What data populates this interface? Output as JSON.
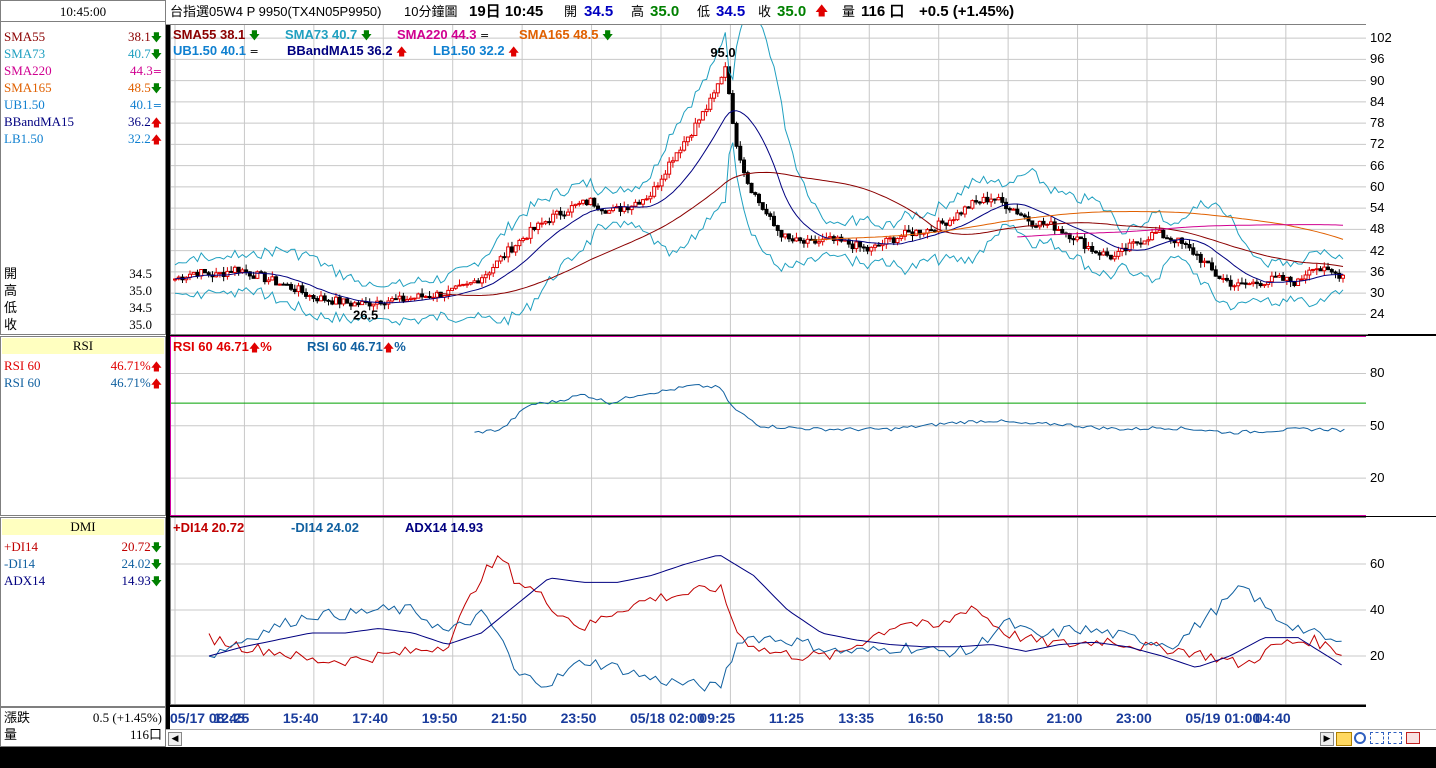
{
  "time": "10:45:00",
  "indicator_list": [
    {
      "name": "SMA55",
      "value": "38.1",
      "dir": "down",
      "color": "#8b0000"
    },
    {
      "name": "SMA73",
      "value": "40.7",
      "dir": "down",
      "color": "#20a0c0"
    },
    {
      "name": "SMA220",
      "value": "44.3",
      "dir": "eq",
      "color": "#d00090"
    },
    {
      "name": "SMA165",
      "value": "48.5",
      "dir": "down",
      "color": "#e06000"
    },
    {
      "name": "UB1.50",
      "value": "40.1",
      "dir": "eq",
      "color": "#1080d0"
    },
    {
      "name": "BBandMA15",
      "value": "36.2",
      "dir": "up",
      "color": "#000080"
    },
    {
      "name": "LB1.50",
      "value": "32.2",
      "dir": "up",
      "color": "#1080d0"
    }
  ],
  "ohlc": [
    {
      "label": "開",
      "value": "34.5"
    },
    {
      "label": "高",
      "value": "35.0"
    },
    {
      "label": "低",
      "value": "34.5"
    },
    {
      "label": "收",
      "value": "35.0"
    }
  ],
  "rsi_panel": {
    "header": "RSI",
    "items": [
      {
        "name": "RSI 60",
        "value": "46.71%",
        "color": "#e00000"
      },
      {
        "name": "RSI 60",
        "value": "46.71%",
        "color": "#1060a0"
      }
    ]
  },
  "dmi_panel": {
    "header": "DMI",
    "items": [
      {
        "name": "+DI14",
        "value": "20.72",
        "dir": "down",
        "color": "#c00000"
      },
      {
        "name": "-DI14",
        "value": "24.02",
        "dir": "down",
        "color": "#1060a0"
      },
      {
        "name": "ADX14",
        "value": "14.93",
        "dir": "down",
        "color": "#000080"
      }
    ]
  },
  "change_label": "漲跌",
  "change_value": "0.5 (+1.45%)",
  "volume_label": "量",
  "volume_value": "116口",
  "topbar": {
    "symbol": "台指選05W4 P 9950(TX4N05P9950)",
    "interval": "10分鐘圖",
    "datetime": "19日 10:45",
    "open_label": "開",
    "open": "34.5",
    "high_label": "高",
    "high": "35.0",
    "low_label": "低",
    "low": "34.5",
    "close_label": "收",
    "close": "35.0",
    "vol_label": "量",
    "vol": "116 口",
    "change": "+0.5 (+1.45%)"
  },
  "price_legend": [
    {
      "text": "SMA55 38.1",
      "dir": "down",
      "color": "#8b0000"
    },
    {
      "text": "SMA73 40.7",
      "dir": "down",
      "color": "#20a0c0"
    },
    {
      "text": "SMA220 44.3",
      "dir": "eq",
      "color": "#d00090"
    },
    {
      "text": "SMA165 48.5",
      "dir": "down",
      "color": "#e06000"
    },
    {
      "text": "UB1.50 40.1",
      "dir": "eq",
      "color": "#1080d0"
    },
    {
      "text": "BBandMA15 36.2",
      "dir": "up",
      "color": "#000080"
    },
    {
      "text": "LB1.50 32.2",
      "dir": "up",
      "color": "#1080d0"
    }
  ],
  "rsi_legend": [
    {
      "text": "RSI 60 46.71",
      "unit": "%",
      "color": "#e00000"
    },
    {
      "text": "RSI 60 46.71",
      "unit": "%",
      "color": "#1060a0"
    }
  ],
  "dmi_legend": [
    {
      "text": "+DI14 20.72",
      "color": "#c00000"
    },
    {
      "text": "-DI14 24.02",
      "color": "#1060a0"
    },
    {
      "text": "ADX14 14.93",
      "color": "#000080"
    }
  ],
  "price_ticks": [
    "102",
    "96",
    "90",
    "84",
    "78",
    "72",
    "66",
    "60",
    "54",
    "48",
    "42",
    "36",
    "30",
    "24"
  ],
  "rsi_ticks": [
    "80",
    "50",
    "20"
  ],
  "dmi_ticks": [
    "60",
    "40",
    "20"
  ],
  "x_ticks": [
    "05/17 08:45",
    "12:25",
    "15:40",
    "17:40",
    "19:50",
    "21:50",
    "23:50",
    "05/18 02:00",
    "09:25",
    "11:25",
    "13:35",
    "16:50",
    "18:50",
    "21:00",
    "23:00",
    "05/19 01:00",
    "04:40"
  ],
  "annotations": {
    "high": "95.0",
    "low": "26.5"
  },
  "chart_data": [
    {
      "type": "candlestick",
      "title": "台指選05W4 P 9950(TX4N05P9950) 10分鐘圖",
      "ylim": [
        21,
        104
      ],
      "x_categories": [
        "05/17 08:45",
        "12:25",
        "15:40",
        "17:40",
        "19:50",
        "21:50",
        "23:50",
        "05/18 02:00",
        "09:25",
        "11:25",
        "13:35",
        "16:50",
        "18:50",
        "21:00",
        "23:00",
        "05/19 01:00",
        "04:40"
      ],
      "close_path": [
        [
          0,
          34
        ],
        [
          0.3,
          36
        ],
        [
          0.6,
          35
        ],
        [
          0.9,
          37
        ],
        [
          1.2,
          35
        ],
        [
          1.5,
          33
        ],
        [
          1.8,
          31
        ],
        [
          2.0,
          29
        ],
        [
          2.3,
          28
        ],
        [
          2.6,
          27
        ],
        [
          2.8,
          27
        ],
        [
          3.0,
          28
        ],
        [
          3.3,
          28
        ],
        [
          3.6,
          29
        ],
        [
          4.0,
          30
        ],
        [
          4.3,
          32
        ],
        [
          4.6,
          36
        ],
        [
          4.9,
          42
        ],
        [
          5.2,
          47
        ],
        [
          5.5,
          51
        ],
        [
          5.8,
          54
        ],
        [
          6.1,
          56
        ],
        [
          6.4,
          53
        ],
        [
          6.7,
          55
        ],
        [
          7.0,
          58
        ],
        [
          7.3,
          68
        ],
        [
          7.6,
          76
        ],
        [
          7.9,
          85
        ],
        [
          8.1,
          95
        ],
        [
          8.2,
          76
        ],
        [
          8.4,
          62
        ],
        [
          8.6,
          55
        ],
        [
          8.8,
          49
        ],
        [
          9.0,
          45
        ],
        [
          9.3,
          44
        ],
        [
          9.6,
          45
        ],
        [
          9.9,
          44
        ],
        [
          10.2,
          42
        ],
        [
          10.5,
          45
        ],
        [
          10.8,
          47
        ],
        [
          11.1,
          48
        ],
        [
          11.4,
          51
        ],
        [
          11.7,
          55
        ],
        [
          12.0,
          57
        ],
        [
          12.3,
          54
        ],
        [
          12.6,
          50
        ],
        [
          12.9,
          49
        ],
        [
          13.2,
          46
        ],
        [
          13.5,
          42
        ],
        [
          13.8,
          40
        ],
        [
          14.1,
          44
        ],
        [
          14.4,
          47
        ],
        [
          14.7,
          45
        ],
        [
          15.0,
          41
        ],
        [
          15.3,
          35
        ],
        [
          15.6,
          32
        ],
        [
          15.9,
          33
        ],
        [
          16.2,
          34
        ],
        [
          16.5,
          33
        ],
        [
          16.7,
          38
        ],
        [
          16.9,
          36
        ],
        [
          17.2,
          35
        ]
      ],
      "series": [
        {
          "name": "SMA55",
          "last": 38.1
        },
        {
          "name": "SMA73",
          "last": 40.7
        },
        {
          "name": "SMA220",
          "last": 44.3
        },
        {
          "name": "SMA165",
          "last": 48.5
        },
        {
          "name": "UB1.50",
          "last": 40.1
        },
        {
          "name": "BBandMA15",
          "last": 36.2
        },
        {
          "name": "LB1.50",
          "last": 32.2
        }
      ],
      "annotations": [
        {
          "text": "95.0",
          "value": 95.0
        },
        {
          "text": "26.5",
          "value": 26.5
        }
      ]
    },
    {
      "type": "line",
      "ylim": [
        0,
        100
      ],
      "series": [
        {
          "name": "RSI 60",
          "values_path": [
            [
              4.4,
              46
            ],
            [
              4.8,
              48
            ],
            [
              5.2,
              62
            ],
            [
              5.6,
              64
            ],
            [
              6.0,
              68
            ],
            [
              6.4,
              63
            ],
            [
              6.8,
              68
            ],
            [
              7.2,
              70
            ],
            [
              7.6,
              73
            ],
            [
              8.0,
              72
            ],
            [
              8.2,
              60
            ],
            [
              8.6,
              50
            ],
            [
              9.0,
              49
            ],
            [
              9.5,
              48
            ],
            [
              10.0,
              48
            ],
            [
              10.5,
              48
            ],
            [
              11.0,
              50
            ],
            [
              11.5,
              52
            ],
            [
              12.0,
              53
            ],
            [
              12.5,
              51
            ],
            [
              13.0,
              51
            ],
            [
              13.5,
              49
            ],
            [
              14.0,
              48
            ],
            [
              14.5,
              49
            ],
            [
              15.0,
              48
            ],
            [
              15.5,
              46
            ],
            [
              16.0,
              47
            ],
            [
              16.5,
              48
            ],
            [
              17.0,
              48
            ],
            [
              17.2,
              47
            ]
          ]
        }
      ]
    },
    {
      "type": "line",
      "ylim": [
        0,
        80
      ],
      "series": [
        {
          "name": "+DI14",
          "values_path": [
            [
              0.5,
              28
            ],
            [
              1,
              24
            ],
            [
              1.5,
              22
            ],
            [
              2,
              18
            ],
            [
              2.5,
              18
            ],
            [
              3,
              20
            ],
            [
              3.5,
              22
            ],
            [
              4,
              25
            ],
            [
              4.5,
              55
            ],
            [
              4.8,
              63
            ],
            [
              5.0,
              53
            ],
            [
              5.3,
              48
            ],
            [
              5.6,
              40
            ],
            [
              6,
              32
            ],
            [
              6.5,
              40
            ],
            [
              7,
              45
            ],
            [
              7.5,
              47
            ],
            [
              8,
              50
            ],
            [
              8.3,
              28
            ],
            [
              8.7,
              22
            ],
            [
              9.2,
              20
            ],
            [
              9.7,
              20
            ],
            [
              10.2,
              28
            ],
            [
              10.7,
              35
            ],
            [
              11.2,
              32
            ],
            [
              11.7,
              42
            ],
            [
              12.2,
              30
            ],
            [
              12.7,
              26
            ],
            [
              13.2,
              25
            ],
            [
              13.7,
              27
            ],
            [
              14.2,
              24
            ],
            [
              14.7,
              23
            ],
            [
              15.2,
              20
            ],
            [
              15.7,
              16
            ],
            [
              16.2,
              25
            ],
            [
              16.7,
              27
            ],
            [
              17.2,
              21
            ]
          ]
        },
        {
          "name": "-DI14",
          "values_path": [
            [
              0.5,
              20
            ],
            [
              1,
              27
            ],
            [
              1.5,
              33
            ],
            [
              2,
              38
            ],
            [
              2.5,
              38
            ],
            [
              3,
              40
            ],
            [
              3.5,
              40
            ],
            [
              4,
              30
            ],
            [
              4.5,
              38
            ],
            [
              4.8,
              28
            ],
            [
              5.0,
              12
            ],
            [
              5.5,
              8
            ],
            [
              6,
              18
            ],
            [
              6.5,
              15
            ],
            [
              7,
              10
            ],
            [
              7.5,
              8
            ],
            [
              8,
              6
            ],
            [
              8.3,
              28
            ],
            [
              8.7,
              28
            ],
            [
              9.2,
              26
            ],
            [
              9.7,
              22
            ],
            [
              10.2,
              22
            ],
            [
              10.7,
              24
            ],
            [
              11.2,
              22
            ],
            [
              11.7,
              22
            ],
            [
              12.2,
              35
            ],
            [
              12.7,
              28
            ],
            [
              13.2,
              32
            ],
            [
              13.7,
              30
            ],
            [
              14.2,
              27
            ],
            [
              14.7,
              25
            ],
            [
              15.2,
              38
            ],
            [
              15.7,
              50
            ],
            [
              16.2,
              36
            ],
            [
              16.7,
              30
            ],
            [
              17.2,
              24
            ]
          ]
        },
        {
          "name": "ADX14",
          "values_path": [
            [
              0.5,
              20
            ],
            [
              1,
              24
            ],
            [
              1.5,
              27
            ],
            [
              2,
              30
            ],
            [
              2.5,
              30
            ],
            [
              3,
              32
            ],
            [
              3.5,
              30
            ],
            [
              4,
              25
            ],
            [
              4.5,
              30
            ],
            [
              5.0,
              42
            ],
            [
              5.5,
              54
            ],
            [
              6,
              52
            ],
            [
              6.5,
              52
            ],
            [
              7,
              55
            ],
            [
              7.5,
              60
            ],
            [
              8,
              64
            ],
            [
              8.5,
              55
            ],
            [
              9,
              40
            ],
            [
              9.5,
              30
            ],
            [
              10,
              27
            ],
            [
              10.5,
              25
            ],
            [
              11,
              24
            ],
            [
              11.5,
              24
            ],
            [
              12,
              25
            ],
            [
              12.5,
              22
            ],
            [
              13,
              25
            ],
            [
              13.5,
              26
            ],
            [
              14,
              24
            ],
            [
              14.5,
              20
            ],
            [
              15,
              15
            ],
            [
              15.5,
              20
            ],
            [
              16,
              28
            ],
            [
              16.5,
              28
            ],
            [
              17.2,
              15
            ]
          ]
        }
      ]
    }
  ]
}
